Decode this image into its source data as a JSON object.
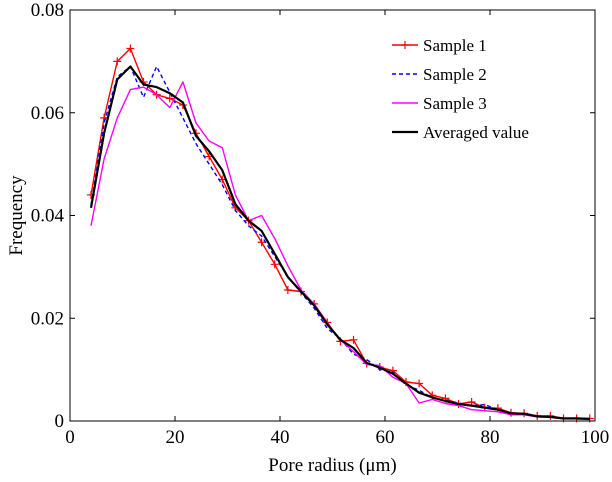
{
  "chart_data": {
    "type": "line",
    "title": "",
    "xlabel": "Pore radius (μm)",
    "ylabel": "Frequency",
    "xlim": [
      0,
      100
    ],
    "ylim": [
      0,
      0.08
    ],
    "xticks": [
      0,
      20,
      40,
      60,
      80,
      100
    ],
    "xtick_labels": [
      "0",
      "20",
      "40",
      "60",
      "80",
      "100"
    ],
    "yticks": [
      0,
      0.02,
      0.04,
      0.06,
      0.08
    ],
    "ytick_labels": [
      "0",
      "0.02",
      "0.04",
      "0.06",
      "0.08"
    ],
    "grid": false,
    "legend_position": "top-right",
    "x": [
      4,
      6.5,
      9,
      11.5,
      14,
      16.5,
      19,
      21.5,
      24,
      26.5,
      29,
      31.5,
      34,
      36.5,
      39,
      41.5,
      44,
      46.5,
      49,
      51.5,
      54,
      56.5,
      59,
      61.5,
      64,
      66.5,
      69,
      71.5,
      74,
      76.5,
      79,
      81.5,
      84,
      86.5,
      89,
      91.5,
      94,
      96.5,
      99
    ],
    "series": [
      {
        "name": "Sample 1",
        "color": "#ff0000",
        "style": "solid",
        "marker": "plus",
        "values": [
          0.044,
          0.059,
          0.07,
          0.0725,
          0.066,
          0.0635,
          0.0628,
          0.0615,
          0.056,
          0.0515,
          0.047,
          0.0415,
          0.039,
          0.0348,
          0.0305,
          0.0255,
          0.0252,
          0.0228,
          0.0192,
          0.0155,
          0.0158,
          0.0112,
          0.0105,
          0.0098,
          0.0076,
          0.0073,
          0.005,
          0.0044,
          0.0033,
          0.0037,
          0.0026,
          0.0025,
          0.0016,
          0.0015,
          0.001,
          0.001,
          0.0005,
          0.0005,
          0.0005
        ]
      },
      {
        "name": "Sample 2",
        "color": "#0000ff",
        "style": "dashed",
        "marker": "none",
        "values": [
          0.042,
          0.058,
          0.067,
          0.069,
          0.063,
          0.069,
          0.064,
          0.059,
          0.054,
          0.05,
          0.046,
          0.041,
          0.038,
          0.036,
          0.032,
          0.028,
          0.025,
          0.022,
          0.018,
          0.016,
          0.013,
          0.012,
          0.01,
          0.0095,
          0.007,
          0.006,
          0.0045,
          0.004,
          0.0035,
          0.003,
          0.0032,
          0.0022,
          0.0015,
          0.0015,
          0.001,
          0.0008,
          0.0005,
          0.0005,
          0.0004
        ]
      },
      {
        "name": "Sample 3",
        "color": "#ff00ff",
        "style": "solid",
        "marker": "none",
        "values": [
          0.038,
          0.051,
          0.059,
          0.0645,
          0.065,
          0.0635,
          0.061,
          0.066,
          0.058,
          0.0545,
          0.0532,
          0.044,
          0.039,
          0.04,
          0.0355,
          0.0302,
          0.0255,
          0.0228,
          0.019,
          0.0158,
          0.0135,
          0.011,
          0.0108,
          0.0085,
          0.0073,
          0.0035,
          0.0042,
          0.0034,
          0.003,
          0.0022,
          0.002,
          0.0018,
          0.0012,
          0.0012,
          0.0008,
          0.0007,
          0.0004,
          0.0004,
          0.0003
        ]
      },
      {
        "name": "Averaged value",
        "color": "#000000",
        "style": "solid",
        "marker": "none",
        "values": [
          0.0415,
          0.056,
          0.0665,
          0.069,
          0.0655,
          0.065,
          0.0638,
          0.062,
          0.0555,
          0.0525,
          0.0488,
          0.0422,
          0.039,
          0.037,
          0.0325,
          0.028,
          0.0252,
          0.0225,
          0.0188,
          0.0158,
          0.0142,
          0.0113,
          0.0104,
          0.0092,
          0.0073,
          0.0055,
          0.0046,
          0.0039,
          0.0033,
          0.003,
          0.0026,
          0.0022,
          0.0015,
          0.0014,
          0.0009,
          0.0008,
          0.0005,
          0.0005,
          0.0004
        ]
      }
    ]
  }
}
